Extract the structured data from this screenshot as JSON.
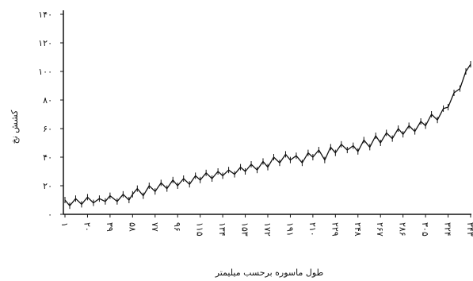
{
  "chart_data": {
    "type": "line",
    "title": "",
    "xlabel": "طول ماسوره برحسب میلیمتر",
    "ylabel": "کشش نخ",
    "ylim": [
      0,
      140
    ],
    "yticks": [
      0,
      20,
      40,
      60,
      80,
      100,
      120,
      140
    ],
    "ytick_labels": [
      "۰",
      "۲۰",
      "۴۰",
      "۶۰",
      "۸۰",
      "۱۰۰",
      "۱۲۰",
      "۱۴۰"
    ],
    "xlim": [
      1,
      343
    ],
    "xticks": [
      1,
      20,
      39,
      58,
      77,
      96,
      115,
      134,
      153,
      172,
      191,
      210,
      229,
      248,
      267,
      286,
      305,
      324,
      343
    ],
    "xtick_labels": [
      "۱",
      "۲۰",
      "۳۹",
      "۵۸",
      "۷۷",
      "۹۶",
      "۱۱۵",
      "۱۳۴",
      "۱۵۳",
      "۱۷۲",
      "۱۹۱",
      "۲۱۰",
      "۲۲۹",
      "۲۴۸",
      "۲۶۷",
      "۲۸۶",
      "۳۰۵",
      "۳۲۴",
      "۳۴۳"
    ],
    "series": [
      {
        "x": [
          1,
          5,
          10,
          15,
          20,
          25,
          30,
          35,
          39,
          45,
          50,
          55,
          58,
          62,
          67,
          72,
          77,
          82,
          87,
          92,
          96,
          101,
          106,
          111,
          115,
          120,
          125,
          130,
          134,
          139,
          144,
          149,
          153,
          158,
          163,
          168,
          172,
          177,
          182,
          187,
          191,
          196,
          201,
          206,
          210,
          215,
          220,
          225,
          229,
          234,
          239,
          244,
          248,
          253,
          258,
          263,
          267,
          272,
          277,
          282,
          286,
          291,
          296,
          301,
          305,
          310,
          315,
          320,
          324,
          329,
          334,
          339,
          343
        ],
        "y": [
          10,
          6,
          11,
          7,
          12,
          8,
          11,
          9,
          13,
          9,
          14,
          10,
          14,
          18,
          13,
          20,
          16,
          22,
          18,
          24,
          20,
          25,
          21,
          27,
          24,
          29,
          25,
          30,
          27,
          31,
          28,
          33,
          30,
          35,
          31,
          37,
          33,
          40,
          36,
          42,
          38,
          41,
          36,
          43,
          40,
          45,
          38,
          47,
          43,
          49,
          45,
          48,
          44,
          52,
          47,
          55,
          50,
          57,
          53,
          60,
          56,
          62,
          58,
          65,
          62,
          70,
          66,
          74,
          75,
          85,
          88,
          100,
          105
        ]
      }
    ]
  }
}
